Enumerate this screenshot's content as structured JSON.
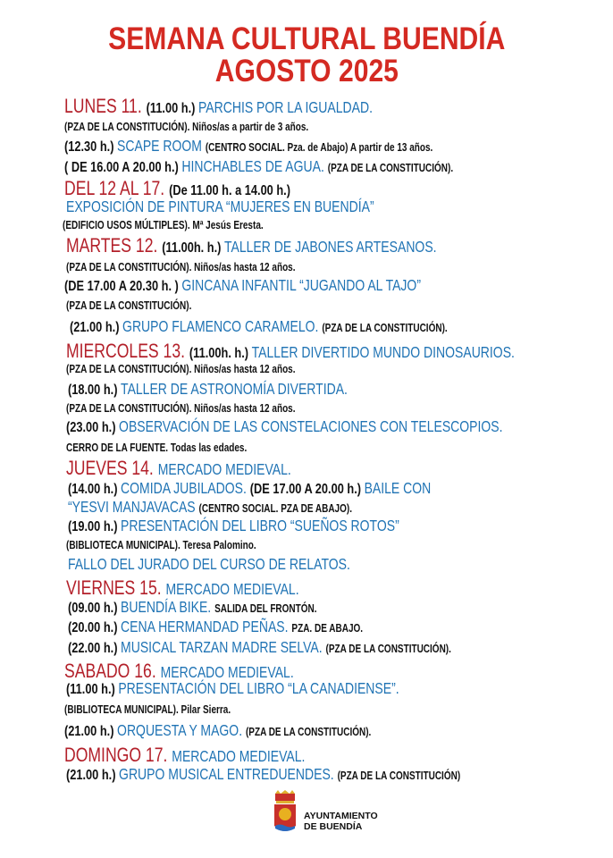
{
  "title": {
    "line1": "SEMANA CULTURAL BUENDÍA",
    "line2": "AGOSTO 2025"
  },
  "colors": {
    "title": "#d42a22",
    "day": "#b3202a",
    "event": "#1f73b4",
    "text": "#111111"
  },
  "lines": [
    [
      {
        "t": "LUNES 11. ",
        "s": "day"
      },
      {
        "t": "(11.00 h.) ",
        "s": "time"
      },
      {
        "t": "PARCHIS POR LA IGUALDAD.",
        "s": "event"
      }
    ],
    [
      {
        "t": "(PZA DE LA CONSTITUCIÓN). Niños/as a partir de 3 años.",
        "s": "note"
      }
    ],
    [
      {
        "t": "(12.30 h.) ",
        "s": "time"
      },
      {
        "t": "SCAPE ROOM ",
        "s": "event"
      },
      {
        "t": "(CENTRO SOCIAL. Pza. de Abajo) A partir de 13 años.",
        "s": "note"
      }
    ],
    [
      {
        "t": "( DE 16.00 A 20.00 h.) ",
        "s": "time"
      },
      {
        "t": "HINCHABLES DE AGUA. ",
        "s": "event"
      },
      {
        "t": "(PZA DE LA CONSTITUCIÓN).",
        "s": "note"
      }
    ],
    [
      {
        "t": "DEL 12 AL 17. ",
        "s": "day"
      },
      {
        "t": "(De 11.00 h. a 14.00 h.)",
        "s": "time"
      }
    ],
    [
      {
        "t": "EXPOSICIÓN DE PINTURA “MUJERES EN BUENDÍA”",
        "s": "event"
      }
    ],
    [
      {
        "t": "(EDIFICIO USOS MÚLTIPLES).  Mª Jesús Eresta.",
        "s": "note"
      }
    ],
    [
      {
        "t": "MARTES 12. ",
        "s": "day"
      },
      {
        "t": "(11.00h. h.) ",
        "s": "time"
      },
      {
        "t": "TALLER DE JABONES ARTESANOS.",
        "s": "event"
      }
    ],
    [
      {
        "t": "(PZA DE LA CONSTITUCIÓN). Niños/as hasta 12 años.",
        "s": "note"
      }
    ],
    [
      {
        "t": "(DE 17.00 A 20.30 h. ) ",
        "s": "time"
      },
      {
        "t": "GINCANA INFANTIL “JUGANDO AL TAJO”",
        "s": "event"
      }
    ],
    [
      {
        "t": "(PZA DE LA CONSTITUCIÓN).",
        "s": "note"
      }
    ],
    [
      {
        "t": "(21.00 h.) ",
        "s": "time"
      },
      {
        "t": "GRUPO FLAMENCO CARAMELO. ",
        "s": "event"
      },
      {
        "t": "(PZA DE LA CONSTITUCIÓN).",
        "s": "note"
      }
    ],
    [
      {
        "t": "MIERCOLES 13. ",
        "s": "day"
      },
      {
        "t": "(11.00h. h.) ",
        "s": "time"
      },
      {
        "t": "TALLER DIVERTIDO MUNDO DINOSAURIOS.",
        "s": "event"
      }
    ],
    [
      {
        "t": "(PZA DE LA CONSTITUCIÓN).  Niños/as hasta 12 años.",
        "s": "note"
      }
    ],
    [
      {
        "t": "(18.00 h.)  ",
        "s": "time"
      },
      {
        "t": "TALLER DE ASTRONOMÍA DIVERTIDA.",
        "s": "event"
      }
    ],
    [
      {
        "t": "(PZA DE LA CONSTITUCIÓN). Niños/as hasta 12 años.",
        "s": "note"
      }
    ],
    [
      {
        "t": "(23.00 h.) ",
        "s": "time"
      },
      {
        "t": "OBSERVACIÓN DE LAS CONSTELACIONES CON TELESCOPIOS.",
        "s": "event"
      }
    ],
    [
      {
        "t": "CERRO DE LA FUENTE. Todas las edades.",
        "s": "note"
      }
    ],
    [
      {
        "t": "JUEVES 14. ",
        "s": "day"
      },
      {
        "t": "MERCADO MEDIEVAL.",
        "s": "event"
      }
    ],
    [
      {
        "t": "(14.00 h.) ",
        "s": "time"
      },
      {
        "t": "COMIDA JUBILADOS. ",
        "s": "event"
      },
      {
        "t": "(DE 17.00 A 20.00 h.) ",
        "s": "time"
      },
      {
        "t": "BAILE CON",
        "s": "event"
      }
    ],
    [
      {
        "t": "“YESVI MANJAVACAS ",
        "s": "event"
      },
      {
        "t": "(CENTRO SOCIAL. PZA DE ABAJO).",
        "s": "note"
      }
    ],
    [
      {
        "t": "(19.00 h.)  ",
        "s": "time"
      },
      {
        "t": "PRESENTACIÓN DEL LIBRO “SUEÑOS ROTOS”",
        "s": "event"
      }
    ],
    [
      {
        "t": "(BIBLIOTECA MUNICIPAL).  Teresa Palomino.",
        "s": "note"
      }
    ],
    [
      {
        "t": "FALLO DEL JURADO DEL CURSO DE RELATOS.",
        "s": "event"
      }
    ],
    [
      {
        "t": "VIERNES 15. ",
        "s": "day"
      },
      {
        "t": "MERCADO MEDIEVAL.",
        "s": "event"
      }
    ],
    [
      {
        "t": "(09.00 h.) ",
        "s": "time"
      },
      {
        "t": "BUENDÍA BIKE. ",
        "s": "event"
      },
      {
        "t": "SALIDA DEL FRONTÓN.",
        "s": "note"
      }
    ],
    [
      {
        "t": "(20.00 h.) ",
        "s": "time"
      },
      {
        "t": "CENA HERMANDAD PEÑAS. ",
        "s": "event"
      },
      {
        "t": "PZA. DE ABAJO.",
        "s": "note"
      }
    ],
    [
      {
        "t": "(22.00 h.) ",
        "s": "time"
      },
      {
        "t": "MUSICAL TARZAN MADRE SELVA. ",
        "s": "event"
      },
      {
        "t": "(PZA DE LA CONSTITUCIÓN).",
        "s": "note"
      }
    ],
    [
      {
        "t": "SABADO 16. ",
        "s": "day"
      },
      {
        "t": "MERCADO MEDIEVAL.",
        "s": "event"
      }
    ],
    [
      {
        "t": "(11.00 h.) ",
        "s": "time"
      },
      {
        "t": "PRESENTACIÓN DEL LIBRO “LA CANADIENSE”.",
        "s": "event"
      }
    ],
    [
      {
        "t": "(BIBLIOTECA MUNICIPAL).  Pilar Sierra.",
        "s": "note"
      }
    ],
    [
      {
        "t": "(21.00 h.) ",
        "s": "time"
      },
      {
        "t": "ORQUESTA Y MAGO. ",
        "s": "event"
      },
      {
        "t": "(PZA DE LA CONSTITUCIÓN).",
        "s": "note"
      }
    ],
    [
      {
        "t": "DOMINGO 17. ",
        "s": "day"
      },
      {
        "t": "MERCADO MEDIEVAL.",
        "s": "event"
      }
    ],
    [
      {
        "t": "(21.00 h.) ",
        "s": "time"
      },
      {
        "t": "GRUPO MUSICAL ENTREDUENDES. ",
        "s": "event"
      },
      {
        "t": "(PZA DE LA CONSTITUCIÓN)",
        "s": "note"
      }
    ]
  ],
  "footer": {
    "logo_line1": "AYUNTAMIENTO",
    "logo_line2": "DE BUENDÍA"
  }
}
